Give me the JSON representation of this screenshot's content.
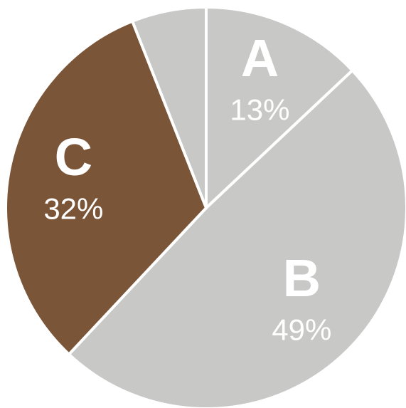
{
  "chart_data": {
    "type": "pie",
    "categories": [
      "A",
      "B",
      "C",
      null
    ],
    "values": [
      13,
      49,
      32,
      6
    ],
    "value_labels": [
      "13%",
      "49%",
      "32%",
      null
    ],
    "colors": [
      "#c8c8c7",
      "#c8c8c7",
      "#7b5538",
      "#c8c8c7"
    ],
    "start_angle": 0,
    "direction": "clockwise"
  }
}
